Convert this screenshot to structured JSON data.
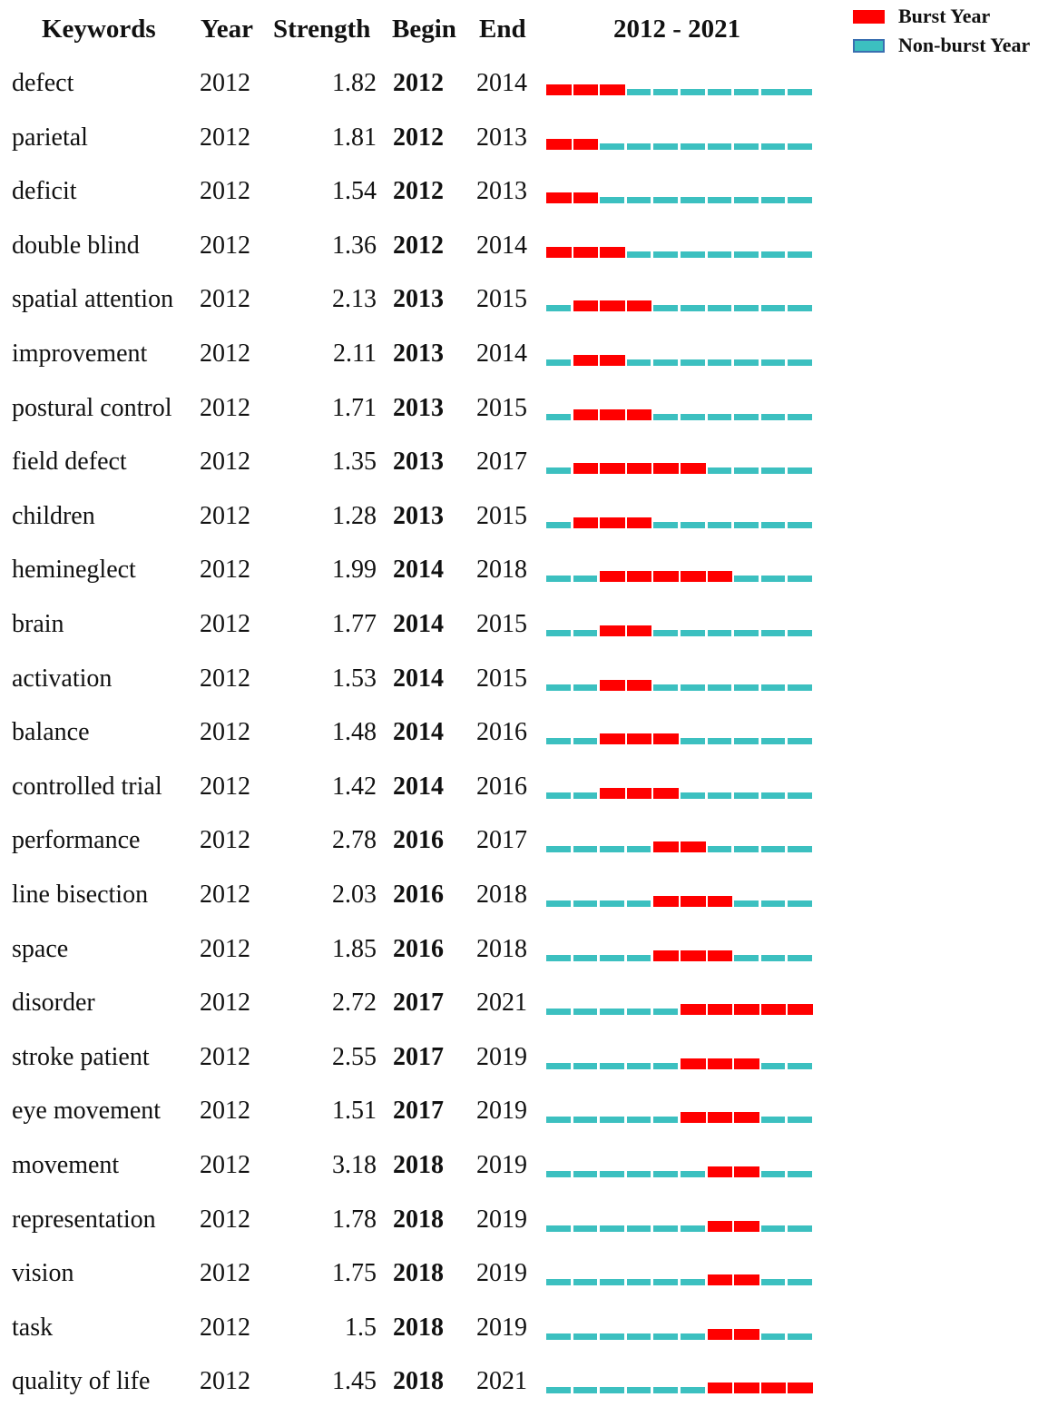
{
  "headers": {
    "keywords": "Keywords",
    "year": "Year",
    "strength": "Strength",
    "begin": "Begin",
    "end": "End",
    "range": "2012 - 2021"
  },
  "legend": {
    "burst": "Burst Year",
    "nonburst": "Non-burst Year"
  },
  "colors": {
    "burst": "#ff0000",
    "nonburst": "#3cc0c0",
    "nonburst_border": "#3a6fb0"
  },
  "chart_data": {
    "type": "table",
    "start_year": 2012,
    "end_year": 2021,
    "columns": [
      "Keywords",
      "Year",
      "Strength",
      "Begin",
      "End"
    ],
    "rows": [
      {
        "keyword": "defect",
        "year": "2012",
        "strength": "1.82",
        "begin": "2012",
        "end": "2014"
      },
      {
        "keyword": "parietal",
        "year": "2012",
        "strength": "1.81",
        "begin": "2012",
        "end": "2013"
      },
      {
        "keyword": "deficit",
        "year": "2012",
        "strength": "1.54",
        "begin": "2012",
        "end": "2013"
      },
      {
        "keyword": "double blind",
        "year": "2012",
        "strength": "1.36",
        "begin": "2012",
        "end": "2014"
      },
      {
        "keyword": "spatial attention",
        "year": "2012",
        "strength": "2.13",
        "begin": "2013",
        "end": "2015"
      },
      {
        "keyword": "improvement",
        "year": "2012",
        "strength": "2.11",
        "begin": "2013",
        "end": "2014"
      },
      {
        "keyword": "postural control",
        "year": "2012",
        "strength": "1.71",
        "begin": "2013",
        "end": "2015"
      },
      {
        "keyword": "field defect",
        "year": "2012",
        "strength": "1.35",
        "begin": "2013",
        "end": "2017"
      },
      {
        "keyword": "children",
        "year": "2012",
        "strength": "1.28",
        "begin": "2013",
        "end": "2015"
      },
      {
        "keyword": "hemineglect",
        "year": "2012",
        "strength": "1.99",
        "begin": "2014",
        "end": "2018"
      },
      {
        "keyword": "brain",
        "year": "2012",
        "strength": "1.77",
        "begin": "2014",
        "end": "2015"
      },
      {
        "keyword": "activation",
        "year": "2012",
        "strength": "1.53",
        "begin": "2014",
        "end": "2015"
      },
      {
        "keyword": "balance",
        "year": "2012",
        "strength": "1.48",
        "begin": "2014",
        "end": "2016"
      },
      {
        "keyword": "controlled trial",
        "year": "2012",
        "strength": "1.42",
        "begin": "2014",
        "end": "2016"
      },
      {
        "keyword": "performance",
        "year": "2012",
        "strength": "2.78",
        "begin": "2016",
        "end": "2017"
      },
      {
        "keyword": "line bisection",
        "year": "2012",
        "strength": "2.03",
        "begin": "2016",
        "end": "2018"
      },
      {
        "keyword": "space",
        "year": "2012",
        "strength": "1.85",
        "begin": "2016",
        "end": "2018"
      },
      {
        "keyword": "disorder",
        "year": "2012",
        "strength": "2.72",
        "begin": "2017",
        "end": "2021"
      },
      {
        "keyword": "stroke patient",
        "year": "2012",
        "strength": "2.55",
        "begin": "2017",
        "end": "2019"
      },
      {
        "keyword": "eye movement",
        "year": "2012",
        "strength": "1.51",
        "begin": "2017",
        "end": "2019"
      },
      {
        "keyword": "movement",
        "year": "2012",
        "strength": "3.18",
        "begin": "2018",
        "end": "2019"
      },
      {
        "keyword": "representation",
        "year": "2012",
        "strength": "1.78",
        "begin": "2018",
        "end": "2019"
      },
      {
        "keyword": "vision",
        "year": "2012",
        "strength": "1.75",
        "begin": "2018",
        "end": "2019"
      },
      {
        "keyword": "task",
        "year": "2012",
        "strength": "1.5",
        "begin": "2018",
        "end": "2019"
      },
      {
        "keyword": "quality of life",
        "year": "2012",
        "strength": "1.45",
        "begin": "2018",
        "end": "2021"
      }
    ]
  }
}
